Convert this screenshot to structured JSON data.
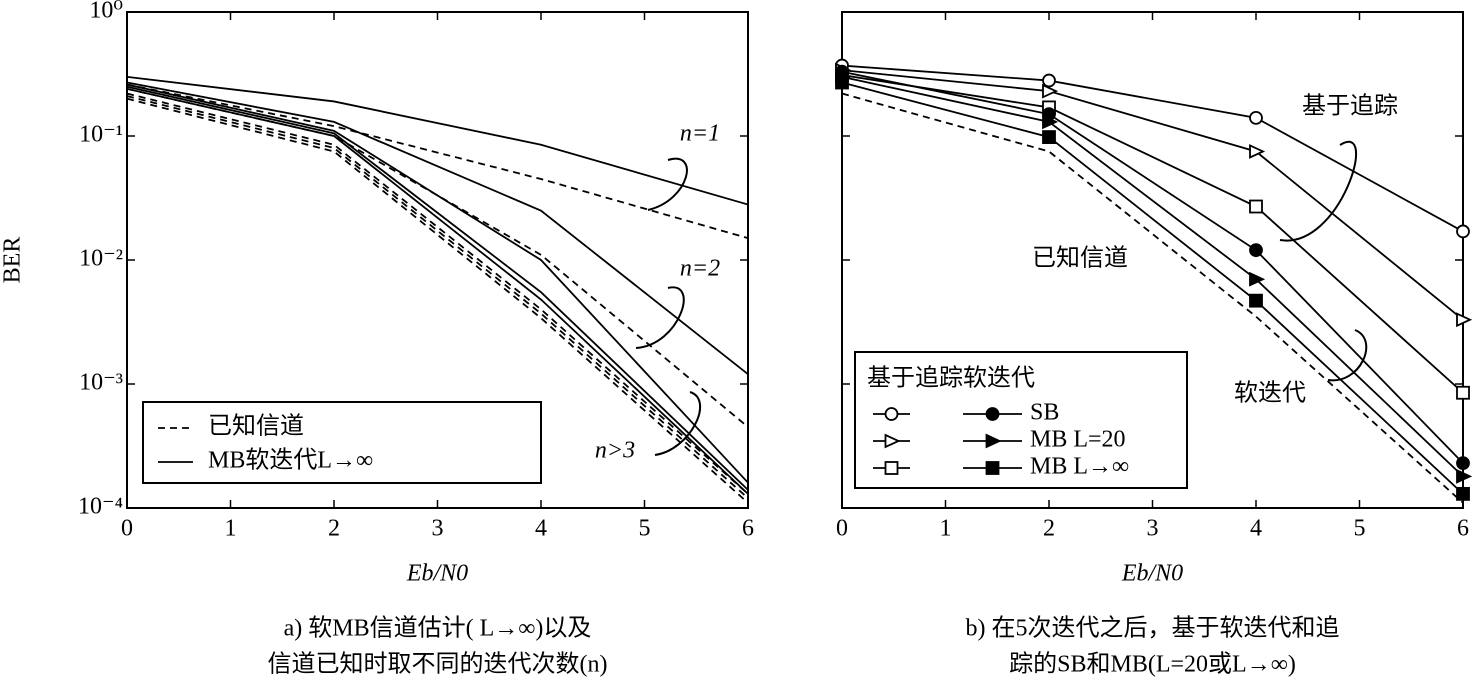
{
  "chart_data": [
    {
      "type": "line",
      "ylabel": "BER",
      "xlabel": "Eb/N0",
      "caption": [
        "a) 软MB信道估计( L→∞)以及",
        "信道已知时取不同的迭代次数(n)"
      ],
      "x": [
        0,
        2,
        4,
        6
      ],
      "xlim": [
        0,
        6
      ],
      "xticks": [
        0,
        1,
        2,
        3,
        4,
        5,
        6
      ],
      "ylim": [
        0.0001,
        1
      ],
      "log": true,
      "ytick_labels": true,
      "yticks": [
        {
          "value": 1,
          "label": "10⁰"
        },
        {
          "value": 0.1,
          "label": "10⁻¹"
        },
        {
          "value": 0.01,
          "label": "10⁻²"
        },
        {
          "value": 0.001,
          "label": "10⁻³"
        },
        {
          "value": 0.0001,
          "label": "10⁻⁴"
        }
      ],
      "series": [
        {
          "dash": false,
          "color": "#000000",
          "values": [
            0.3,
            0.19,
            0.085,
            0.028
          ]
        },
        {
          "dash": true,
          "color": "#000000",
          "values": [
            0.26,
            0.12,
            0.045,
            0.015
          ]
        },
        {
          "dash": false,
          "color": "#000000",
          "values": [
            0.27,
            0.13,
            0.025,
            0.0012
          ]
        },
        {
          "dash": true,
          "color": "#000000",
          "values": [
            0.24,
            0.1,
            0.011,
            0.00045
          ]
        },
        {
          "dash": false,
          "color": "#000000",
          "values": [
            0.26,
            0.11,
            0.01,
            0.00016
          ]
        },
        {
          "dash": false,
          "color": "#000000",
          "values": [
            0.25,
            0.105,
            0.0055,
            0.00014
          ]
        },
        {
          "dash": false,
          "color": "#000000",
          "values": [
            0.24,
            0.1,
            0.0048,
            0.00013
          ]
        },
        {
          "dash": true,
          "color": "#000000",
          "values": [
            0.22,
            0.085,
            0.004,
            0.00013
          ]
        },
        {
          "dash": true,
          "color": "#000000",
          "values": [
            0.21,
            0.08,
            0.0037,
            0.00012
          ]
        },
        {
          "dash": true,
          "color": "#000000",
          "values": [
            0.2,
            0.075,
            0.0034,
            0.00011
          ]
        }
      ],
      "legend": {
        "position": "lower left",
        "entries": [
          {
            "name": "已知信道",
            "dash": true
          },
          {
            "name": "MB软迭代L→∞",
            "dash": false
          }
        ]
      },
      "annotations": [
        "n=1",
        "n=2",
        "n>3"
      ]
    },
    {
      "type": "line",
      "xlabel": "Eb/N0",
      "caption": [
        "b) 在5次迭代之后，基于软迭代和追",
        "踪的SB和MB(L=20或L→∞)"
      ],
      "x": [
        0,
        2,
        4,
        6
      ],
      "xlim": [
        0,
        6
      ],
      "xticks": [
        0,
        1,
        2,
        3,
        4,
        5,
        6
      ],
      "ylim": [
        0.0001,
        1
      ],
      "log": true,
      "ytick_labels": false,
      "yticks": [
        1,
        0.1,
        0.01,
        0.001,
        0.0001
      ],
      "series": [
        {
          "dash": false,
          "color": "#000000",
          "marker": "circle",
          "filled": false,
          "values": [
            0.37,
            0.28,
            0.14,
            0.017
          ]
        },
        {
          "dash": false,
          "color": "#000000",
          "marker": "triangle",
          "filled": false,
          "values": [
            0.34,
            0.23,
            0.075,
            0.0033
          ]
        },
        {
          "dash": false,
          "color": "#000000",
          "marker": "square",
          "filled": false,
          "values": [
            0.31,
            0.17,
            0.027,
            0.00085
          ]
        },
        {
          "name": "SB",
          "dash": false,
          "color": "#000000",
          "marker": "circle",
          "filled": true,
          "values": [
            0.33,
            0.15,
            0.012,
            0.00023
          ]
        },
        {
          "name": "MB L=20",
          "dash": false,
          "color": "#000000",
          "marker": "triangle",
          "filled": true,
          "values": [
            0.3,
            0.13,
            0.007,
            0.00018
          ]
        },
        {
          "name": "MB L→∞",
          "dash": false,
          "color": "#000000",
          "marker": "square",
          "filled": true,
          "values": [
            0.27,
            0.098,
            0.0047,
            0.00013
          ]
        },
        {
          "dash": true,
          "color": "#000000",
          "values": [
            0.22,
            0.075,
            0.0035,
            0.00011
          ]
        }
      ],
      "legend": {
        "position": "lower left",
        "title": "基于追踪软迭代"
      },
      "annotations": [
        "基于追踪",
        "已知信道",
        "软迭代"
      ]
    }
  ]
}
